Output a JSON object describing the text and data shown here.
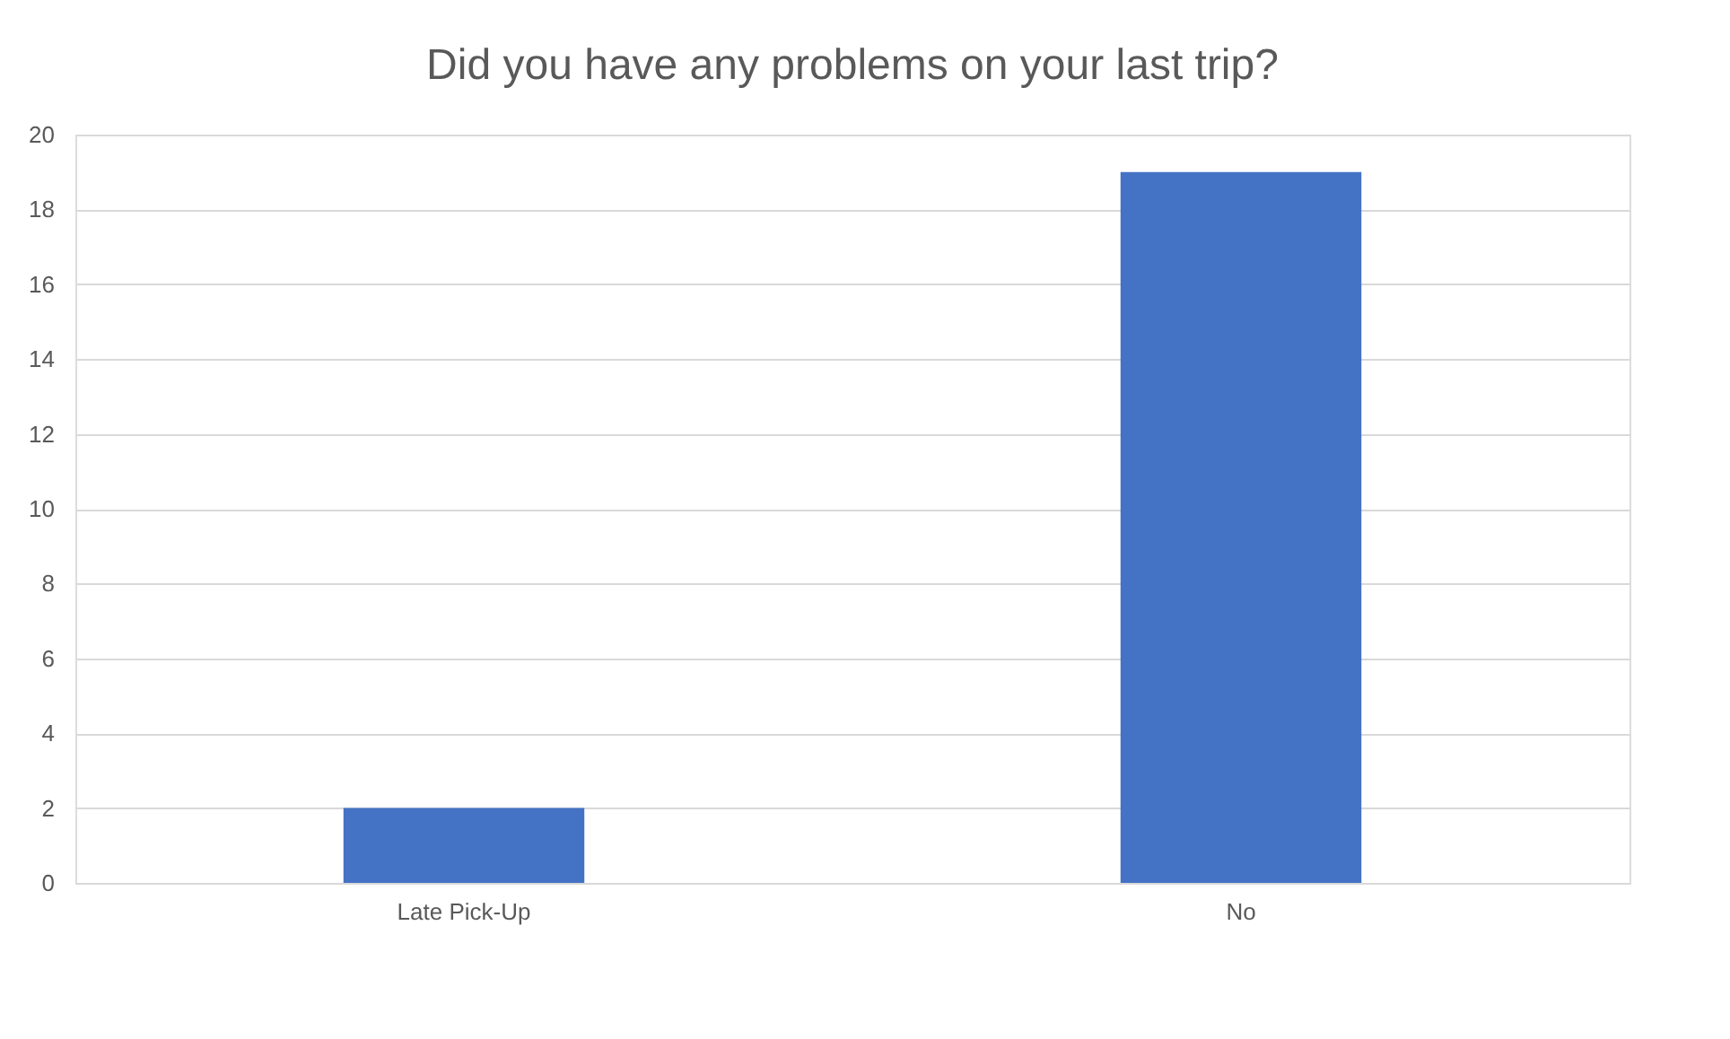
{
  "chart_data": {
    "type": "bar",
    "title": "Did you have any problems on your last trip?",
    "categories": [
      "Late Pick-Up",
      "No"
    ],
    "series": [
      {
        "color": "#4472c4",
        "values": [
          2,
          19
        ]
      }
    ],
    "ylim": [
      0,
      20
    ],
    "yticks": [
      0,
      2,
      4,
      6,
      8,
      10,
      12,
      14,
      16,
      18,
      20
    ],
    "grid": "y",
    "legend": false
  }
}
